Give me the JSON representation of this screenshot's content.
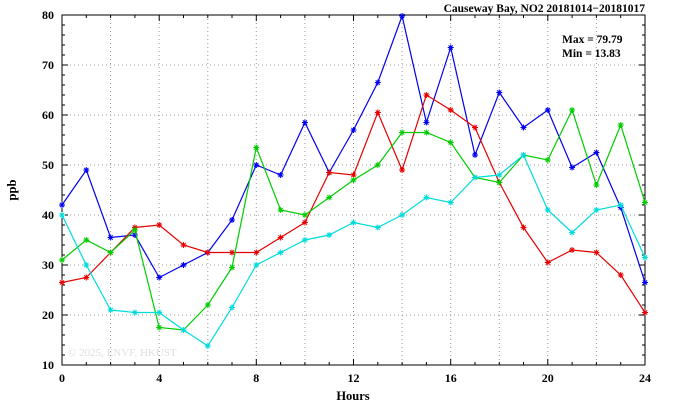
{
  "header": {
    "title": "Causeway Bay, NO2 20181014−20181017"
  },
  "annotation": {
    "max_label": "Max = 79.79",
    "min_label": "Min = 13.83"
  },
  "watermark": "© 2025, ENVF, HKUST",
  "chart_data": {
    "type": "line",
    "title": "Causeway Bay, NO2 20181014−20181017",
    "xlabel": "Hours",
    "ylabel": "ppb",
    "xlim": [
      0,
      24
    ],
    "ylim": [
      10,
      80
    ],
    "xticks": [
      0,
      4,
      8,
      12,
      16,
      20,
      24
    ],
    "yticks": [
      10,
      20,
      30,
      40,
      50,
      60,
      70,
      80
    ],
    "grid": true,
    "legend": "none",
    "max_value": 79.79,
    "min_value": 13.83,
    "x": [
      0,
      1,
      2,
      3,
      4,
      5,
      6,
      7,
      8,
      9,
      10,
      11,
      12,
      13,
      14,
      15,
      16,
      17,
      18,
      19,
      20,
      21,
      22,
      23,
      24
    ],
    "series": [
      {
        "name": "line-blue",
        "color": "#0000ee",
        "values": [
          42,
          49,
          35.5,
          36,
          27.5,
          30,
          32.5,
          39,
          50,
          48,
          58.5,
          48.5,
          57,
          66.5,
          79.79,
          58.5,
          73.5,
          52,
          64.5,
          57.5,
          61,
          49.5,
          52.5,
          41.5,
          26.5
        ]
      },
      {
        "name": "line-red",
        "color": "#e60000",
        "values": [
          26.5,
          27.5,
          32.5,
          37.5,
          38,
          34,
          32.5,
          32.5,
          32.5,
          35.5,
          38.5,
          48.5,
          48,
          60.5,
          49,
          64,
          61,
          57.5,
          46.5,
          37.5,
          30.5,
          33,
          32.5,
          28,
          20.5
        ]
      },
      {
        "name": "line-green",
        "color": "#00cc00",
        "values": [
          31,
          35,
          32.5,
          37,
          17.5,
          17,
          22,
          29.5,
          53.5,
          41,
          40,
          43.5,
          47,
          50,
          56.5,
          56.5,
          54.5,
          47.5,
          46.5,
          52,
          51,
          61,
          46,
          58,
          42.5
        ]
      },
      {
        "name": "line-cyan",
        "color": "#00dcdc",
        "values": [
          40,
          30,
          21,
          20.5,
          20.5,
          17,
          13.83,
          21.5,
          30,
          32.5,
          35,
          36,
          38.5,
          37.5,
          40,
          43.5,
          42.5,
          47.5,
          48,
          52,
          41,
          36.5,
          41,
          42,
          31.5
        ]
      }
    ]
  }
}
